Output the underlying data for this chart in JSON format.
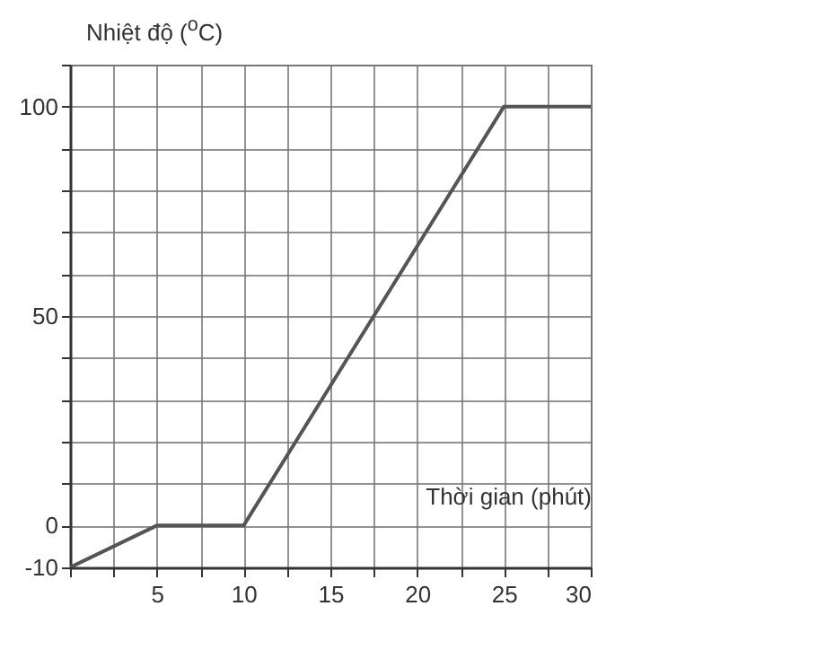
{
  "chart_data": {
    "type": "line",
    "xlabel": "Thời gian (phút)",
    "ylabel": "Nhiệt độ ($^{o}$C)",
    "x": [
      0,
      5,
      10,
      25,
      30
    ],
    "series": [
      {
        "color": "#555555",
        "values": [
          -10,
          0,
          0,
          100,
          100
        ]
      }
    ],
    "xlim": [
      0,
      30
    ],
    "ylim": [
      -10,
      110
    ],
    "xticks": [
      {
        "value": 0,
        "label": null
      },
      {
        "value": 2.5,
        "label": null
      },
      5,
      {
        "value": 7.5,
        "label": null
      },
      10,
      {
        "value": 12.5,
        "label": null
      },
      15,
      {
        "value": 17.5,
        "label": null
      },
      20,
      {
        "value": 22.5,
        "label": null
      },
      25,
      {
        "value": 27.5,
        "label": null
      },
      30
    ],
    "yticks": [
      -10,
      0,
      {
        "value": 10,
        "label": null
      },
      {
        "value": 20,
        "label": null
      },
      {
        "value": 30,
        "label": null
      },
      {
        "value": 40,
        "label": null
      },
      50,
      {
        "value": 60,
        "label": null
      },
      {
        "value": 70,
        "label": null
      },
      {
        "value": 80,
        "label": null
      },
      {
        "value": 90,
        "label": null
      },
      100,
      {
        "value": 110,
        "label": null
      }
    ],
    "grid": true,
    "marker": "none",
    "line_style": "solid"
  }
}
